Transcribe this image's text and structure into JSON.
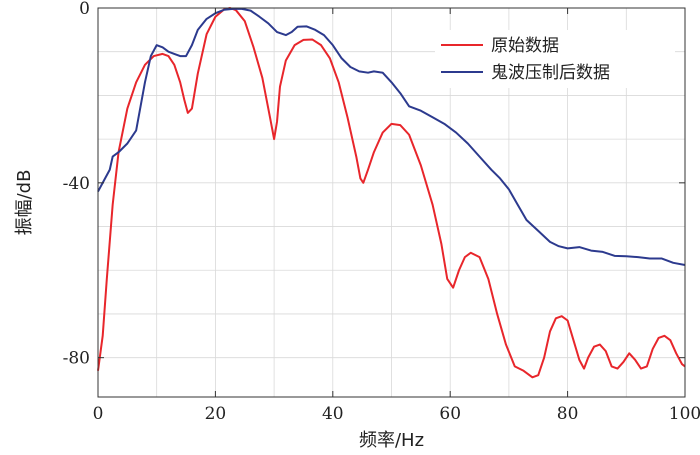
{
  "chart_data": {
    "type": "line",
    "xlabel": "频率/Hz",
    "ylabel": "振幅/dB",
    "xlim": [
      0,
      100
    ],
    "ylim": [
      -89,
      0
    ],
    "xticks": [
      0,
      20,
      40,
      60,
      80,
      100
    ],
    "yticks": [
      0,
      -40,
      -80
    ],
    "grid": true,
    "legend": "top-right",
    "series": [
      {
        "name": "原始数据",
        "color": "#e8262b",
        "x": [
          0,
          0.8,
          1.5,
          2.5,
          3.5,
          5,
          6.5,
          8,
          9.5,
          11,
          12,
          13,
          14,
          14.7,
          15.3,
          16,
          17,
          18.5,
          20,
          21.5,
          22.5,
          23.5,
          25,
          26.5,
          28,
          29.3,
          30,
          30.5,
          31,
          32,
          33.5,
          35,
          36.5,
          38,
          39.5,
          41,
          42.5,
          44,
          44.7,
          45.2,
          46,
          47,
          48.5,
          50,
          51.5,
          53,
          55,
          57,
          58.5,
          59.5,
          60.5,
          61.5,
          62.5,
          63.5,
          65,
          66.5,
          68,
          69.5,
          71,
          72.5,
          74,
          75,
          76,
          77,
          78,
          79,
          80,
          81,
          82,
          82.8,
          83.5,
          84.5,
          85.5,
          86.5,
          87.5,
          88.5,
          89.5,
          90.5,
          91.5,
          92.5,
          93.5,
          94.5,
          95.5,
          96.5,
          97.5,
          98.5,
          99.5,
          100
        ],
        "values": [
          -83,
          -75,
          -62,
          -45,
          -33,
          -23,
          -17,
          -13,
          -11,
          -10.5,
          -11,
          -13,
          -17,
          -21,
          -24,
          -23,
          -15,
          -6,
          -2,
          -0.3,
          0,
          -0.5,
          -3,
          -9,
          -16,
          -25,
          -30,
          -26,
          -18,
          -12,
          -8.5,
          -7.3,
          -7.2,
          -8.5,
          -11.5,
          -17,
          -25,
          -34,
          -39,
          -40,
          -37,
          -33,
          -28.5,
          -26.5,
          -26.8,
          -29,
          -36,
          -45,
          -54,
          -62,
          -64,
          -60,
          -57,
          -56,
          -57,
          -62,
          -70,
          -77,
          -82,
          -83,
          -84.5,
          -84,
          -80,
          -74,
          -71,
          -70.5,
          -71.5,
          -76,
          -80.5,
          -82.5,
          -80,
          -77.5,
          -77,
          -78.5,
          -82,
          -82.5,
          -81,
          -79,
          -80.5,
          -82.5,
          -82,
          -78,
          -75.5,
          -75,
          -76,
          -79,
          -81.5,
          -82
        ]
      },
      {
        "name": "鬼波压制后数据",
        "color": "#2c3a8e",
        "x": [
          0,
          1,
          2,
          2.5,
          3.5,
          5,
          6.5,
          8,
          9,
          10,
          11,
          12,
          13,
          14,
          15,
          16,
          17,
          18.5,
          20,
          21.5,
          23,
          24.5,
          26,
          27.5,
          29,
          30.5,
          32,
          33,
          34,
          35.5,
          37,
          38.5,
          40,
          41.5,
          43,
          44.5,
          46,
          47,
          48.5,
          50,
          51.5,
          53,
          55,
          57,
          59,
          61,
          63,
          65,
          67,
          68.5,
          70,
          71.5,
          73,
          75,
          77,
          78.5,
          80,
          82,
          84,
          86,
          88,
          90,
          92,
          94,
          96,
          98,
          100
        ],
        "values": [
          -42,
          -39.5,
          -37,
          -34,
          -33,
          -31,
          -28,
          -17,
          -11,
          -8.5,
          -9,
          -10,
          -10.5,
          -11,
          -11,
          -8.5,
          -5,
          -2.5,
          -1.2,
          -0.4,
          -0.2,
          -0.2,
          -0.6,
          -2,
          -3.5,
          -5.5,
          -6.2,
          -5.5,
          -4.3,
          -4.2,
          -5,
          -6.2,
          -8.5,
          -11.5,
          -13.5,
          -14.5,
          -14.8,
          -14.5,
          -14.8,
          -17,
          -19.5,
          -22.5,
          -23.5,
          -25,
          -26.5,
          -28.5,
          -31,
          -34,
          -37,
          -39,
          -41.5,
          -45,
          -48.5,
          -51,
          -53.5,
          -54.5,
          -55,
          -54.7,
          -55.5,
          -55.8,
          -56.7,
          -56.8,
          -57,
          -57.3,
          -57.3,
          -58.3,
          -58.8
        ]
      }
    ]
  }
}
